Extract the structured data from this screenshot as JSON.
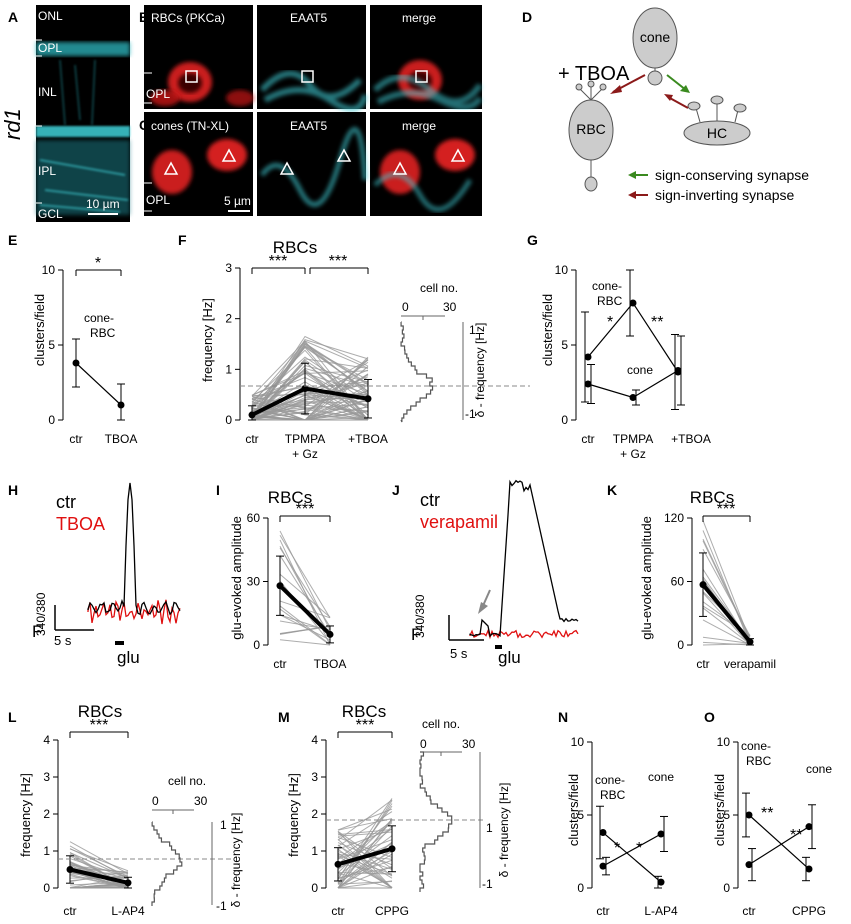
{
  "panels": {
    "A": {
      "label": "A",
      "side_label": "rd1",
      "layers": [
        "ONL",
        "OPL",
        "INL",
        "IPL",
        "GCL"
      ],
      "scale": "10 µm"
    },
    "B": {
      "label": "B",
      "titles": [
        "RBCs (PKCa)",
        "EAAT5",
        "merge"
      ],
      "layer": "OPL"
    },
    "C": {
      "label": "C",
      "titles": [
        "cones (TN-XL)",
        "EAAT5",
        "merge"
      ],
      "layer": "OPL",
      "scale": "5 µm"
    },
    "D": {
      "label": "D",
      "drug": "+ TBOA",
      "cone": "cone",
      "rbc": "RBC",
      "hc": "HC",
      "legend": [
        "sign-conserving synapse",
        "sign-inverting synapse"
      ],
      "colors": {
        "conserving": "#3a8a1f",
        "inverting": "#8b1a1a"
      }
    },
    "E": {
      "label": "E",
      "ylabel": "clusters/field",
      "cats": [
        "ctr",
        "TBOA"
      ],
      "series_label": [
        "cone-",
        "RBC"
      ],
      "sig": "*"
    },
    "F": {
      "label": "F",
      "title": "RBCs",
      "ylabel": "frequency [Hz]",
      "cats": [
        "ctr",
        "TPMPA",
        "+ Gz",
        "+TBOA"
      ],
      "sig": [
        "***",
        "***"
      ],
      "hist_x": "cell no.",
      "hist_y": "δ - frequency [Hz]"
    },
    "G": {
      "label": "G",
      "ylabel": "clusters/field",
      "cats": [
        "ctr",
        "TPMPA",
        "+ Gz",
        "+TBOA"
      ],
      "lab1": [
        "cone-",
        "RBC"
      ],
      "lab2": "cone",
      "sig": [
        "*",
        "**"
      ]
    },
    "H": {
      "label": "H",
      "legend": [
        "ctr",
        "TBOA"
      ],
      "scale_t": "5 s",
      "stim": "glu"
    },
    "I": {
      "label": "I",
      "title": "RBCs",
      "ylabel": "glu-evoked amplitude",
      "cats": [
        "ctr",
        "TBOA"
      ],
      "sig": "***"
    },
    "J": {
      "label": "J",
      "legend": [
        "ctr",
        "verapamil"
      ],
      "scale_t": "5 s",
      "stim": "glu"
    },
    "K": {
      "label": "K",
      "title": "RBCs",
      "ylabel": "glu-evoked amplitude",
      "cats": [
        "ctr",
        "verapamil"
      ],
      "sig": "***"
    },
    "L": {
      "label": "L",
      "title": "RBCs",
      "ylabel": "frequency [Hz]",
      "cats": [
        "ctr",
        "L-AP4"
      ],
      "sig": "***",
      "hist_x": "cell no.",
      "hist_y": "δ - frequency [Hz]"
    },
    "M": {
      "label": "M",
      "title": "RBCs",
      "ylabel": "frequency [Hz]",
      "cats": [
        "ctr",
        "CPPG"
      ],
      "sig": "***",
      "hist_x": "cell no.",
      "hist_y": "δ - frequency [Hz]"
    },
    "N": {
      "label": "N",
      "ylabel": "clusters/field",
      "cats": [
        "ctr",
        "L-AP4"
      ],
      "lab1": [
        "cone-",
        "RBC"
      ],
      "lab2": "cone",
      "sig": [
        "*",
        "*"
      ]
    },
    "O": {
      "label": "O",
      "ylabel": "clusters/field",
      "cats": [
        "ctr",
        "CPPG"
      ],
      "lab1": [
        "cone-",
        "RBC"
      ],
      "lab2": "cone",
      "sig": [
        "**",
        "**"
      ]
    }
  },
  "fsig": "F",
  "fsig_sub": "340/380",
  "chart_data": [
    {
      "id": "E",
      "type": "line",
      "ylim": [
        0,
        10
      ],
      "yticks": [
        0,
        5,
        10
      ],
      "series": [
        {
          "name": "cone-RBC",
          "values": [
            3.8,
            1.0
          ],
          "err": [
            1.6,
            1.4
          ]
        }
      ]
    },
    {
      "id": "F",
      "type": "line",
      "ylim": [
        0,
        3
      ],
      "yticks": [
        0,
        1,
        2,
        3
      ],
      "series": [
        {
          "name": "mean",
          "values": [
            0.1,
            0.62,
            0.42
          ],
          "err": [
            0.18,
            0.5,
            0.38
          ]
        }
      ]
    },
    {
      "id": "G",
      "type": "line",
      "ylim": [
        0,
        10
      ],
      "yticks": [
        0,
        5,
        10
      ],
      "series": [
        {
          "name": "cone-RBC",
          "values": [
            4.2,
            7.8,
            3.2
          ],
          "err": [
            3.0,
            2.2,
            2.5
          ]
        },
        {
          "name": "cone",
          "values": [
            2.4,
            1.5,
            3.3
          ],
          "err": [
            1.3,
            0.5,
            2.3
          ]
        }
      ]
    },
    {
      "id": "I",
      "type": "line",
      "ylim": [
        0,
        60
      ],
      "yticks": [
        0,
        30,
        60
      ],
      "series": [
        {
          "name": "mean",
          "values": [
            28,
            5
          ],
          "err": [
            14,
            4
          ]
        }
      ]
    },
    {
      "id": "K",
      "type": "line",
      "ylim": [
        0,
        120
      ],
      "yticks": [
        0,
        60,
        120
      ],
      "series": [
        {
          "name": "mean",
          "values": [
            57,
            3
          ],
          "err": [
            30,
            3
          ]
        }
      ]
    },
    {
      "id": "L",
      "type": "line",
      "ylim": [
        0,
        4
      ],
      "yticks": [
        0,
        1,
        2,
        3,
        4
      ],
      "series": [
        {
          "name": "mean",
          "values": [
            0.5,
            0.14
          ],
          "err": [
            0.37,
            0.15
          ]
        }
      ]
    },
    {
      "id": "M",
      "type": "line",
      "ylim": [
        0,
        4
      ],
      "yticks": [
        0,
        1,
        2,
        3,
        4
      ],
      "series": [
        {
          "name": "mean",
          "values": [
            0.64,
            1.06
          ],
          "err": [
            0.45,
            0.62
          ]
        }
      ]
    },
    {
      "id": "N",
      "type": "line",
      "ylim": [
        0,
        10
      ],
      "yticks": [
        0,
        5,
        10
      ],
      "series": [
        {
          "name": "cone-RBC",
          "values": [
            3.8,
            0.4
          ],
          "err": [
            1.8,
            0.4
          ]
        },
        {
          "name": "cone",
          "values": [
            1.5,
            3.7
          ],
          "err": [
            0.6,
            1.2
          ]
        }
      ]
    },
    {
      "id": "O",
      "type": "line",
      "ylim": [
        0,
        10
      ],
      "yticks": [
        0,
        5,
        10
      ],
      "series": [
        {
          "name": "cone-RBC",
          "values": [
            5.0,
            1.3
          ],
          "err": [
            1.5,
            0.8
          ]
        },
        {
          "name": "cone",
          "values": [
            1.6,
            4.2
          ],
          "err": [
            1.1,
            1.5
          ]
        }
      ]
    }
  ]
}
